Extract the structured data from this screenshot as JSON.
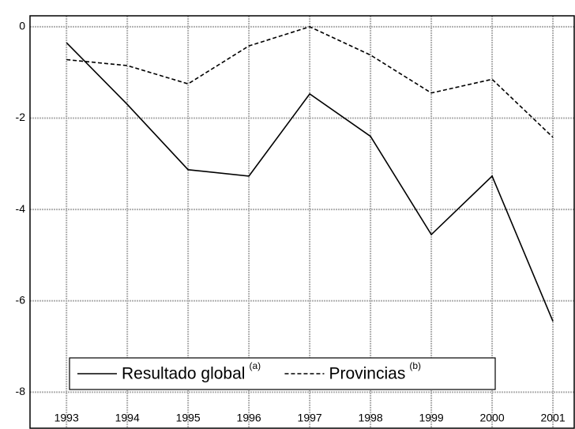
{
  "chart_data": {
    "type": "line",
    "x": [
      1993,
      1994,
      1995,
      1996,
      1997,
      1998,
      1999,
      2000,
      2001
    ],
    "xlim": [
      1992.4,
      2001.35
    ],
    "xticks": [
      1993,
      1994,
      1995,
      1996,
      1997,
      1998,
      1999,
      2000,
      2001
    ],
    "ylim": [
      -8.79,
      0.24
    ],
    "yticks": [
      0,
      -2,
      -4,
      -6,
      -8
    ],
    "grid": true,
    "series": [
      {
        "name": "Resultado global",
        "superscript": "(a)",
        "color": "#000000",
        "dash": "solid",
        "values": [
          -0.35,
          -1.7,
          -3.13,
          -3.27,
          -1.47,
          -2.4,
          -4.55,
          -3.27,
          -6.45
        ]
      },
      {
        "name": "Provincias",
        "superscript": "(b)",
        "color": "#000000",
        "dash": "dashed",
        "values": [
          -0.72,
          -0.85,
          -1.25,
          -0.42,
          0,
          -0.62,
          -1.45,
          -1.15,
          -2.42
        ]
      }
    ]
  }
}
